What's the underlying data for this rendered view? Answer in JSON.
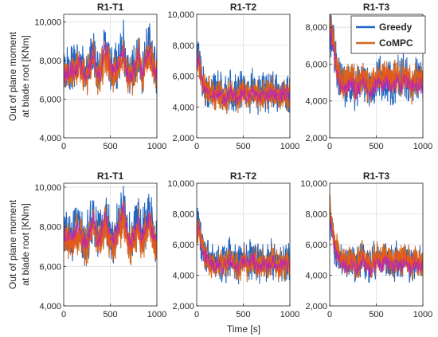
{
  "figure": {
    "ylabel": "Out of plane moment\nat blade root [KNm]",
    "xlabel": "Time [s]"
  },
  "legend": {
    "placement": "top-right",
    "entries": [
      {
        "name": "Greedy",
        "color": "#2166c2"
      },
      {
        "name": "CoMPC",
        "color": "#d2691e"
      }
    ]
  },
  "colors": {
    "greedy": "#2166c2",
    "compc": "#d2691e",
    "compc_inner": "#e8561c",
    "accent_purple": "#b01fd0",
    "accent_green": "#3a9a1e",
    "grid": "#dedede"
  },
  "chart_data": [
    {
      "type": "line",
      "title": "R1-T1",
      "row": 1,
      "col": 1,
      "xlim": [
        0,
        1000
      ],
      "ylim": [
        4000,
        10400
      ],
      "xticks": [
        0,
        500,
        1000
      ],
      "xtick_labels": [
        "0",
        "500",
        "1000"
      ],
      "yticks": [
        4000,
        6000,
        8000,
        10000
      ],
      "ytick_labels": [
        "4,000",
        "6,000",
        "8,000",
        "10,000"
      ],
      "grid": true,
      "series": [
        {
          "name": "Greedy",
          "x": [
            0,
            40,
            80,
            120,
            160,
            200,
            240,
            280,
            320,
            360,
            400,
            440,
            480,
            520,
            560,
            600,
            640,
            680,
            720,
            760,
            800,
            840,
            880,
            920,
            960,
            1000
          ],
          "values": [
            7400,
            7600,
            7800,
            7500,
            8200,
            7700,
            7300,
            7900,
            8600,
            7400,
            7600,
            9000,
            8300,
            7500,
            7800,
            8200,
            8900,
            7600,
            7300,
            7800,
            8600,
            7400,
            8200,
            8900,
            7900,
            7500
          ]
        },
        {
          "name": "CoMPC",
          "x": [
            0,
            40,
            80,
            120,
            160,
            200,
            240,
            280,
            320,
            360,
            400,
            440,
            480,
            520,
            560,
            600,
            640,
            680,
            720,
            760,
            800,
            840,
            880,
            920,
            960,
            1000
          ],
          "values": [
            7200,
            7400,
            7500,
            7300,
            7800,
            7400,
            7100,
            7600,
            8100,
            7200,
            7400,
            8400,
            7900,
            7200,
            7500,
            7900,
            8400,
            7300,
            7100,
            7500,
            8200,
            7200,
            7800,
            8400,
            7600,
            7300
          ]
        }
      ]
    },
    {
      "type": "line",
      "title": "R1-T2",
      "row": 1,
      "col": 2,
      "xlim": [
        0,
        1000
      ],
      "ylim": [
        2000,
        10000
      ],
      "xticks": [
        0,
        500,
        1000
      ],
      "xtick_labels": [
        "0",
        "500",
        "1000"
      ],
      "yticks": [
        2000,
        4000,
        6000,
        8000,
        10000
      ],
      "ytick_labels": [
        "2,000",
        "4,000",
        "6,000",
        "8,000",
        "10,000"
      ],
      "grid": true,
      "series": [
        {
          "name": "Greedy",
          "x": [
            0,
            20,
            40,
            60,
            80,
            120,
            160,
            200,
            240,
            280,
            320,
            360,
            400,
            440,
            480,
            520,
            560,
            600,
            640,
            680,
            720,
            760,
            800,
            840,
            880,
            920,
            960,
            1000
          ],
          "values": [
            6800,
            7600,
            6200,
            5800,
            5400,
            5200,
            5000,
            4900,
            5100,
            4700,
            4800,
            5200,
            4900,
            4700,
            5000,
            5100,
            4800,
            5300,
            5000,
            4700,
            5100,
            4900,
            5200,
            5000,
            4800,
            5100,
            5000,
            4900
          ]
        },
        {
          "name": "CoMPC",
          "x": [
            0,
            20,
            40,
            60,
            80,
            120,
            160,
            200,
            240,
            280,
            320,
            360,
            400,
            440,
            480,
            520,
            560,
            600,
            640,
            680,
            720,
            760,
            800,
            840,
            880,
            920,
            960,
            1000
          ],
          "values": [
            6500,
            7200,
            6000,
            5600,
            5200,
            5000,
            4800,
            4700,
            4900,
            4500,
            4600,
            5000,
            4700,
            4500,
            4800,
            4900,
            4600,
            5100,
            4800,
            4500,
            4900,
            4700,
            5000,
            4800,
            4600,
            4900,
            4800,
            4700
          ]
        }
      ]
    },
    {
      "type": "line",
      "title": "R1-T3",
      "row": 1,
      "col": 3,
      "xlim": [
        0,
        1000
      ],
      "ylim": [
        2000,
        8700
      ],
      "xticks": [
        0,
        500,
        1000
      ],
      "xtick_labels": [
        "0",
        "500",
        "1000"
      ],
      "yticks": [
        2000,
        4000,
        6000,
        8000
      ],
      "ytick_labels": [
        "2,000",
        "4,000",
        "6,000",
        "8,000"
      ],
      "grid": true,
      "series": [
        {
          "name": "Greedy",
          "x": [
            0,
            20,
            40,
            60,
            80,
            120,
            160,
            200,
            240,
            280,
            320,
            360,
            400,
            440,
            480,
            520,
            560,
            600,
            640,
            680,
            720,
            760,
            800,
            840,
            880,
            920,
            960,
            1000
          ],
          "values": [
            7800,
            7600,
            7000,
            6200,
            5600,
            5000,
            4800,
            4900,
            5200,
            4700,
            4900,
            5300,
            4800,
            4600,
            5000,
            5200,
            4900,
            5400,
            5000,
            4800,
            5300,
            4900,
            5400,
            5100,
            4800,
            5200,
            5000,
            4900
          ]
        },
        {
          "name": "CoMPC",
          "x": [
            0,
            20,
            40,
            60,
            80,
            120,
            160,
            200,
            240,
            280,
            320,
            360,
            400,
            440,
            480,
            520,
            560,
            600,
            640,
            680,
            720,
            760,
            800,
            840,
            880,
            920,
            960,
            1000
          ],
          "values": [
            8200,
            7900,
            7200,
            6300,
            5700,
            5100,
            4900,
            5000,
            5300,
            4800,
            5000,
            5400,
            4900,
            4700,
            5100,
            5300,
            5000,
            5500,
            5100,
            4900,
            5400,
            5000,
            5500,
            5200,
            4900,
            5300,
            5100,
            5000
          ]
        }
      ]
    },
    {
      "type": "line",
      "title": "R1-T1",
      "row": 2,
      "col": 1,
      "xlim": [
        0,
        1000
      ],
      "ylim": [
        4000,
        10200
      ],
      "xticks": [
        0,
        500,
        1000
      ],
      "xtick_labels": [
        "0",
        "500",
        "1000"
      ],
      "yticks": [
        4000,
        6000,
        8000,
        10000
      ],
      "ytick_labels": [
        "4,000",
        "6,000",
        "8,000",
        "10,000"
      ],
      "grid": true,
      "series": [
        {
          "name": "Greedy",
          "x": [
            0,
            40,
            80,
            120,
            160,
            200,
            240,
            280,
            320,
            360,
            400,
            440,
            480,
            520,
            560,
            600,
            640,
            680,
            720,
            760,
            800,
            840,
            880,
            920,
            960,
            1000
          ],
          "values": [
            7600,
            7900,
            7400,
            7800,
            8300,
            7500,
            7200,
            7900,
            8700,
            7500,
            7700,
            8800,
            8100,
            7400,
            7800,
            8400,
            9200,
            8000,
            7300,
            7800,
            8500,
            7500,
            8200,
            8800,
            7700,
            7400
          ]
        },
        {
          "name": "CoMPC",
          "x": [
            0,
            40,
            80,
            120,
            160,
            200,
            240,
            280,
            320,
            360,
            400,
            440,
            480,
            520,
            560,
            600,
            640,
            680,
            720,
            760,
            800,
            840,
            880,
            920,
            960,
            1000
          ],
          "values": [
            7300,
            7500,
            7200,
            7400,
            7800,
            7200,
            6900,
            7500,
            8100,
            7200,
            7400,
            8200,
            7600,
            7100,
            7400,
            7900,
            8500,
            7600,
            7000,
            7400,
            8000,
            7200,
            7700,
            8200,
            7300,
            7100
          ]
        }
      ]
    },
    {
      "type": "line",
      "title": "R1-T2",
      "row": 2,
      "col": 2,
      "xlim": [
        0,
        1000
      ],
      "ylim": [
        2000,
        10000
      ],
      "xticks": [
        0,
        500,
        1000
      ],
      "xtick_labels": [
        "0",
        "500",
        "1000"
      ],
      "yticks": [
        2000,
        4000,
        6000,
        8000,
        10000
      ],
      "ytick_labels": [
        "2,000",
        "4,000",
        "6,000",
        "8,000",
        "10,000"
      ],
      "grid": true,
      "series": [
        {
          "name": "Greedy",
          "x": [
            0,
            20,
            40,
            60,
            80,
            120,
            160,
            200,
            240,
            280,
            320,
            360,
            400,
            440,
            480,
            520,
            560,
            600,
            640,
            680,
            720,
            760,
            800,
            840,
            880,
            920,
            960,
            1000
          ],
          "values": [
            6600,
            7800,
            6400,
            5900,
            5500,
            5200,
            5000,
            4800,
            5000,
            4700,
            4900,
            5300,
            4900,
            4600,
            5000,
            5100,
            4800,
            5200,
            4900,
            4700,
            5000,
            4800,
            5200,
            4900,
            4700,
            5000,
            4900,
            4800
          ]
        },
        {
          "name": "CoMPC",
          "x": [
            0,
            20,
            40,
            60,
            80,
            120,
            160,
            200,
            240,
            280,
            320,
            360,
            400,
            440,
            480,
            520,
            560,
            600,
            640,
            680,
            720,
            760,
            800,
            840,
            880,
            920,
            960,
            1000
          ],
          "values": [
            6300,
            7300,
            6100,
            5700,
            5300,
            5000,
            4800,
            4600,
            4800,
            4500,
            4700,
            5100,
            4700,
            4400,
            4800,
            4900,
            4600,
            5000,
            4700,
            4500,
            4800,
            4600,
            5000,
            4700,
            4500,
            4800,
            4700,
            4600
          ]
        }
      ]
    },
    {
      "type": "line",
      "title": "R1-T3",
      "row": 2,
      "col": 3,
      "xlim": [
        0,
        1000
      ],
      "ylim": [
        2000,
        10000
      ],
      "xticks": [
        0,
        500,
        1000
      ],
      "xtick_labels": [
        "0",
        "500",
        "1000"
      ],
      "yticks": [
        2000,
        4000,
        6000,
        8000,
        10000
      ],
      "ytick_labels": [
        "2,000",
        "4,000",
        "6,000",
        "8,000",
        "10,000"
      ],
      "grid": true,
      "series": [
        {
          "name": "Greedy",
          "x": [
            0,
            20,
            40,
            60,
            80,
            120,
            160,
            200,
            240,
            280,
            320,
            360,
            400,
            440,
            480,
            520,
            560,
            600,
            640,
            680,
            720,
            760,
            800,
            840,
            880,
            920,
            960,
            1000
          ],
          "values": [
            7600,
            7200,
            6400,
            5800,
            5400,
            5000,
            4800,
            4700,
            5000,
            4600,
            4800,
            5200,
            4700,
            4500,
            4900,
            5100,
            4800,
            5200,
            4900,
            4600,
            5000,
            4700,
            5100,
            4800,
            4600,
            4900,
            4700,
            4600
          ]
        },
        {
          "name": "CoMPC",
          "x": [
            0,
            20,
            40,
            60,
            80,
            120,
            160,
            200,
            240,
            280,
            320,
            360,
            400,
            440,
            480,
            520,
            560,
            600,
            640,
            680,
            720,
            760,
            800,
            840,
            880,
            920,
            960,
            1000
          ],
          "values": [
            8300,
            7600,
            6700,
            6000,
            5500,
            5100,
            4900,
            4800,
            5100,
            4700,
            4900,
            5300,
            4800,
            4600,
            5000,
            5200,
            4900,
            5300,
            5000,
            4700,
            5100,
            4800,
            5200,
            4900,
            4700,
            5000,
            4800,
            4700
          ]
        }
      ]
    }
  ]
}
